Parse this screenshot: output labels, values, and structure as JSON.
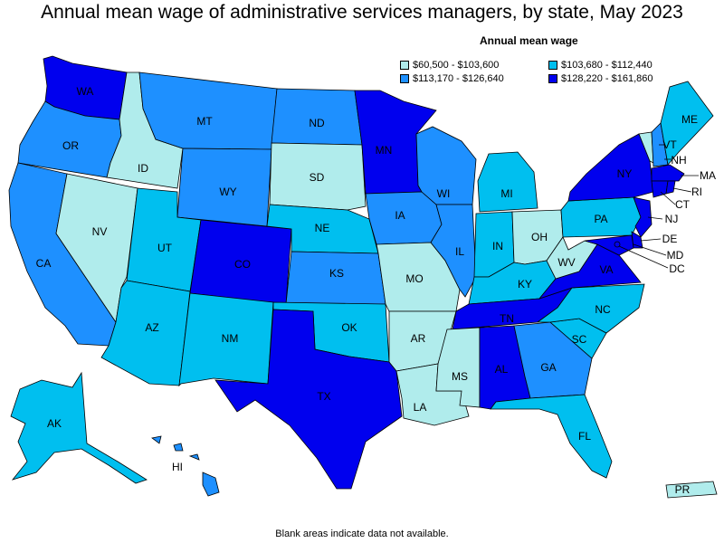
{
  "title": "Annual mean wage of administrative services managers, by state, May 2023",
  "legend": {
    "title": "Annual mean wage",
    "items": [
      {
        "label": "$60,500 - $103,600",
        "color": "#b0ecec"
      },
      {
        "label": "$103,680 - $112,440",
        "color": "#00bfef"
      },
      {
        "label": "$113,170 - $126,640",
        "color": "#1e90ff"
      },
      {
        "label": "$128,220 - $161,860",
        "color": "#0000ee"
      }
    ]
  },
  "footnote": "Blank areas indicate data not available.",
  "states": {
    "WA": "$128,220 - $161,860",
    "OR": "$113,170 - $126,640",
    "CA": "$113,170 - $126,640",
    "ID": "$60,500 - $103,600",
    "NV": "$60,500 - $103,600",
    "MT": "$113,170 - $126,640",
    "WY": "$113,170 - $126,640",
    "UT": "$103,680 - $112,440",
    "AZ": "$103,680 - $112,440",
    "CO": "$128,220 - $161,860",
    "NM": "$103,680 - $112,440",
    "ND": "$113,170 - $126,640",
    "SD": "$60,500 - $103,600",
    "NE": "$103,680 - $112,440",
    "KS": "$113,170 - $126,640",
    "OK": "$103,680 - $112,440",
    "TX": "$128,220 - $161,860",
    "MN": "$128,220 - $161,860",
    "IA": "$113,170 - $126,640",
    "MO": "$60,500 - $103,600",
    "AR": "$60,500 - $103,600",
    "LA": "$60,500 - $103,600",
    "WI": "$113,170 - $126,640",
    "IL": "$113,170 - $126,640",
    "MI": "$103,680 - $112,440",
    "IN": "$103,680 - $112,440",
    "OH": "$60,500 - $103,600",
    "KY": "$103,680 - $112,440",
    "TN": "$128,220 - $161,860",
    "MS": "$60,500 - $103,600",
    "AL": "$128,220 - $161,860",
    "GA": "$113,170 - $126,640",
    "FL": "$103,680 - $112,440",
    "SC": "$103,680 - $112,440",
    "NC": "$103,680 - $112,440",
    "VA": "$128,220 - $161,860",
    "WV": "$60,500 - $103,600",
    "PA": "$103,680 - $112,440",
    "NY": "$128,220 - $161,860",
    "VT": "$60,500 - $103,600",
    "NH": "$113,170 - $126,640",
    "ME": "$103,680 - $112,440",
    "MA": "$128,220 - $161,860",
    "RI": "$128,220 - $161,860",
    "CT": "$128,220 - $161,860",
    "NJ": "$128,220 - $161,860",
    "DE": "$128,220 - $161,860",
    "MD": "$128,220 - $161,860",
    "DC": "$128,220 - $161,860",
    "AK": "$103,680 - $112,440",
    "HI": "$113,170 - $126,640",
    "PR": "$60,500 - $103,600"
  }
}
